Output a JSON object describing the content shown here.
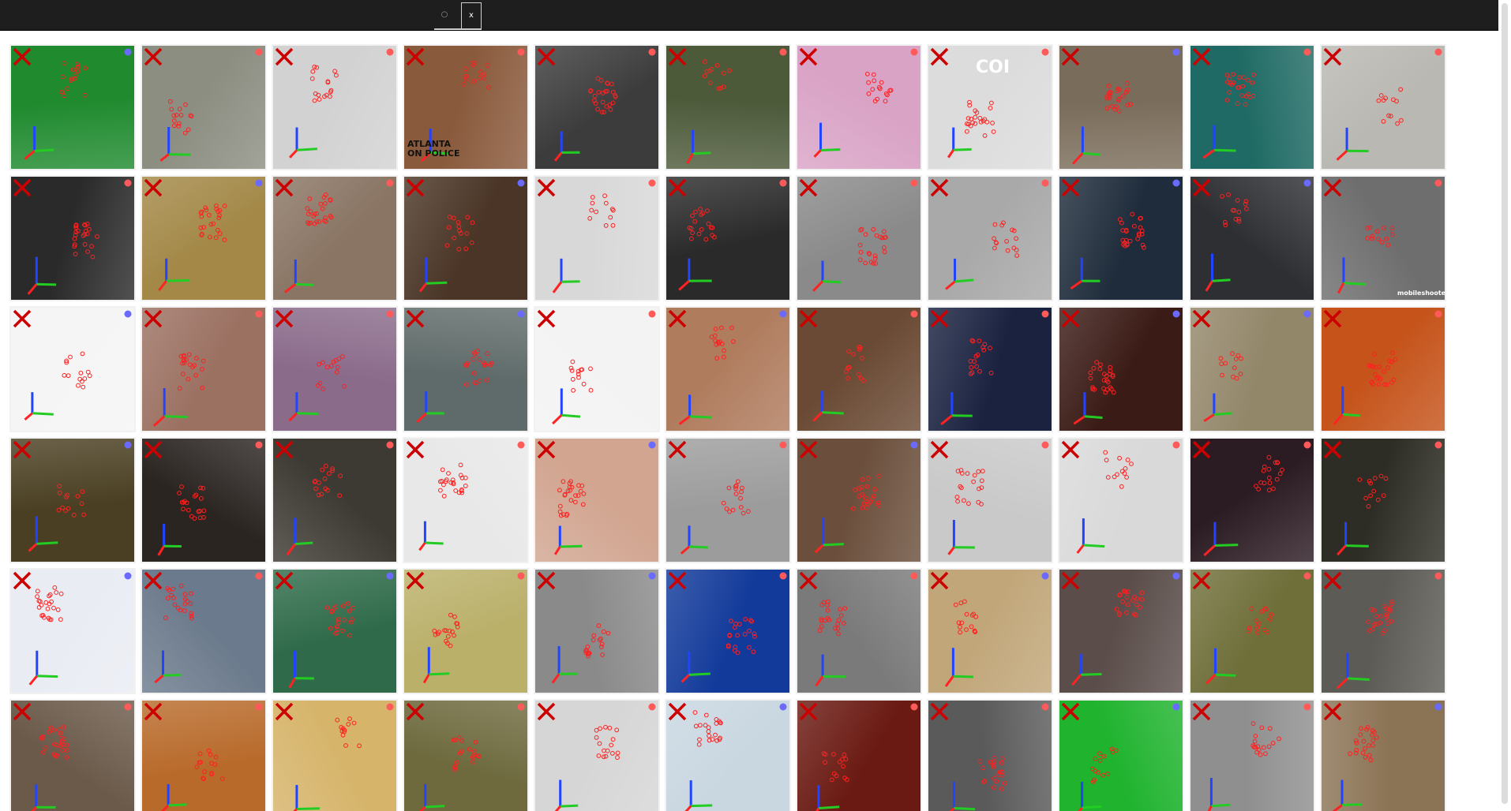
{
  "toolbar": {
    "dot_glyph": "○",
    "close_glyph": "x"
  },
  "grid": {
    "columns": 11,
    "rows": 6,
    "tile_backgrounds": [
      [
        "#1f8a2e",
        "#8d8e82",
        "#d2d2d2",
        "#8a5a3c",
        "#3c3c3c",
        "#4d5a3a",
        "#d9a3c6",
        "#dcdcdc",
        "#7a6c5a",
        "#1f6a64",
        "#b9b8b2"
      ],
      [
        "#2a2a2a",
        "#a38847",
        "#8a7564",
        "#4a3526",
        "#d8d8d8",
        "#2a2a2a",
        "#8a8a8a",
        "#a9a9a9",
        "#1f2c3b",
        "#2e2f33",
        "#6e6e6e"
      ],
      [
        "#f5f5f5",
        "#9b7162",
        "#8a6b8a",
        "#5f6b6a",
        "#f3f3f3",
        "#b07c5e",
        "#6a4a34",
        "#1a2240",
        "#3b1b16",
        "#93876a",
        "#c5531a"
      ],
      [
        "#4a3f22",
        "#2b2522",
        "#3d3a33",
        "#e8e8e8",
        "#d1a590",
        "#9c9c9c",
        "#6b4f3c",
        "#c9c9c9",
        "#d9d9d9",
        "#2b1b22",
        "#2d2d25"
      ],
      [
        "#e9ecf3",
        "#6b7a8c",
        "#2f6b4a",
        "#bab06a",
        "#8a8a8a",
        "#123a9a",
        "#7a7a7a",
        "#c1a679",
        "#5a4d4a",
        "#6f6f3a",
        "#5c5b55"
      ],
      [
        "#6b5a4a",
        "#b86a2a",
        "#d6b46a",
        "#6e6a3e",
        "#d6d6d6",
        "#c9d7e1",
        "#6a1a12",
        "#5a5a5a",
        "#1fb32e",
        "#8f8f8f",
        "#8b7355"
      ]
    ],
    "indicator_colors": [
      [
        "#6a6aff",
        "#ff5a5a",
        "#ff5a5a",
        "#ff5a5a",
        "#ff5a5a",
        "#ff5a5a",
        "#ff5a5a",
        "#ff5a5a",
        "#6a6aff",
        "#ff5a5a",
        "#ff5a5a"
      ],
      [
        "#ff5a5a",
        "#6a6aff",
        "#ff5a5a",
        "#6a6aff",
        "#ff5a5a",
        "#ff5a5a",
        "#ff5a5a",
        "#ff5a5a",
        "#6a6aff",
        "#6a6aff",
        "#ff5a5a"
      ],
      [
        "#6a6aff",
        "#ff5a5a",
        "#ff5a5a",
        "#6a6aff",
        "#ff5a5a",
        "#6a6aff",
        "#ff5a5a",
        "#ff5a5a",
        "#6a6aff",
        "#6a6aff",
        "#ff5a5a"
      ],
      [
        "#6a6aff",
        "#ff5a5a",
        "#ff5a5a",
        "#ff5a5a",
        "#6a6aff",
        "#ff5a5a",
        "#6a6aff",
        "#ff5a5a",
        "#ff5a5a",
        "#ff5a5a",
        "#ff5a5a"
      ],
      [
        "#6a6aff",
        "#ff5a5a",
        "#6a6aff",
        "#ff5a5a",
        "#6a6aff",
        "#ff5a5a",
        "#ff5a5a",
        "#6a6aff",
        "#6a6aff",
        "#ff5a5a",
        "#ff5a5a"
      ],
      [
        "#ff5a5a",
        "#ff5a5a",
        "#ff5a5a",
        "#ff5a5a",
        "#ff5a5a",
        "#6a6aff",
        "#ff5a5a",
        "#ff5a5a",
        "#6a6aff",
        "#ff5a5a",
        "#6a6aff"
      ]
    ],
    "visible_texts": [
      {
        "row": 0,
        "col": 3,
        "text": "ATLANTA"
      },
      {
        "row": 0,
        "col": 3,
        "text": "ON POLICE"
      },
      {
        "row": 0,
        "col": 7,
        "text": "COI"
      },
      {
        "row": 1,
        "col": 10,
        "text": "mobileshooter"
      }
    ]
  },
  "colors": {
    "cross": "#cc0000",
    "landmark": "#ff2020",
    "axis_x": "#22cc22",
    "axis_y": "#2244ff",
    "axis_z": "#ff2222"
  },
  "icons": {
    "reject": "cross-icon",
    "status": "indicator-dot-icon",
    "axes": "pose-axes-icon",
    "landmarks": "landmark-points-icon"
  }
}
